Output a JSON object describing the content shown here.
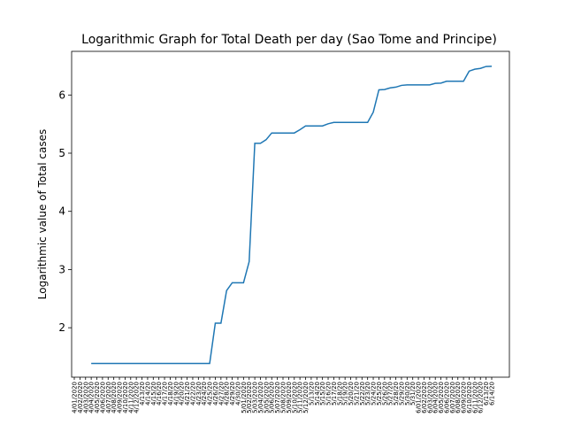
{
  "chart_data": {
    "type": "line",
    "title": "Logarithmic Graph for Total Death per day (Sao Tome and Principe)",
    "y_label": "Logarithmic value of Total cases",
    "categories": [
      "4/01/2020",
      "4/02/2020",
      "4/03/2020",
      "4/04/2020",
      "4/05/2020",
      "4/06/2020",
      "4/07/2020",
      "4/08/2020",
      "4/09/2020",
      "4/10/2020",
      "4/11/2020",
      "4/12/2020",
      "4/13/20",
      "4/14/20",
      "4/15/20",
      "4/16/20",
      "4/17/20",
      "4/18/20",
      "4/19/20",
      "4/20/20",
      "4/21/20",
      "4/22/20",
      "4/23/20",
      "4/24/20",
      "4/25/20",
      "4/26/20",
      "4/27/20",
      "4/28/20",
      "4/29/20",
      "4/30/20",
      "5/01/2020",
      "5/02/2020",
      "5/03/2020",
      "5/04/2020",
      "5/05/2020",
      "5/06/2020",
      "5/07/2020",
      "5/08/2020",
      "5/09/2020",
      "5/10/2020",
      "5/11/2020",
      "5/12/2020",
      "5/13/20",
      "5/14/20",
      "5/15/20",
      "5/16/20",
      "5/17/20",
      "5/18/20",
      "5/19/20",
      "5/20/20",
      "5/21/20",
      "5/22/20",
      "5/23/20",
      "5/24/20",
      "5/25/20",
      "5/26/20",
      "5/27/20",
      "5/28/20",
      "5/29/20",
      "5/30/20",
      "5/31/20",
      "6/01/2020",
      "6/02/2020",
      "6/03/2020",
      "6/04/2020",
      "6/05/2020",
      "6/06/2020",
      "6/07/2020",
      "6/08/2020",
      "6/09/2020",
      "6/10/2020",
      "6/11/2020",
      "6/12/2020",
      "6/13/20",
      "6/14/20"
    ],
    "series": [
      {
        "name": "Total Death",
        "color": "#1f77b4",
        "values": [
          null,
          null,
          null,
          1.386,
          1.386,
          1.386,
          1.386,
          1.386,
          1.386,
          1.386,
          1.386,
          1.386,
          1.386,
          1.386,
          1.386,
          1.386,
          1.386,
          1.386,
          1.386,
          1.386,
          1.386,
          1.386,
          1.386,
          1.386,
          1.386,
          2.079,
          2.079,
          2.639,
          2.773,
          2.773,
          2.773,
          3.135,
          5.17,
          5.17,
          5.231,
          5.347,
          5.347,
          5.347,
          5.347,
          5.347,
          5.403,
          5.468,
          5.468,
          5.468,
          5.468,
          5.505,
          5.529,
          5.529,
          5.529,
          5.529,
          5.529,
          5.529,
          5.529,
          5.704,
          6.089,
          6.094,
          6.122,
          6.135,
          6.165,
          6.174,
          6.174,
          6.174,
          6.174,
          6.174,
          6.2,
          6.204,
          6.236,
          6.236,
          6.236,
          6.236,
          6.41,
          6.444,
          6.457,
          6.49,
          6.493
        ]
      }
    ],
    "ylim": [
      1.15,
      6.75
    ],
    "yticks": [
      2,
      3,
      4,
      5,
      6
    ]
  }
}
